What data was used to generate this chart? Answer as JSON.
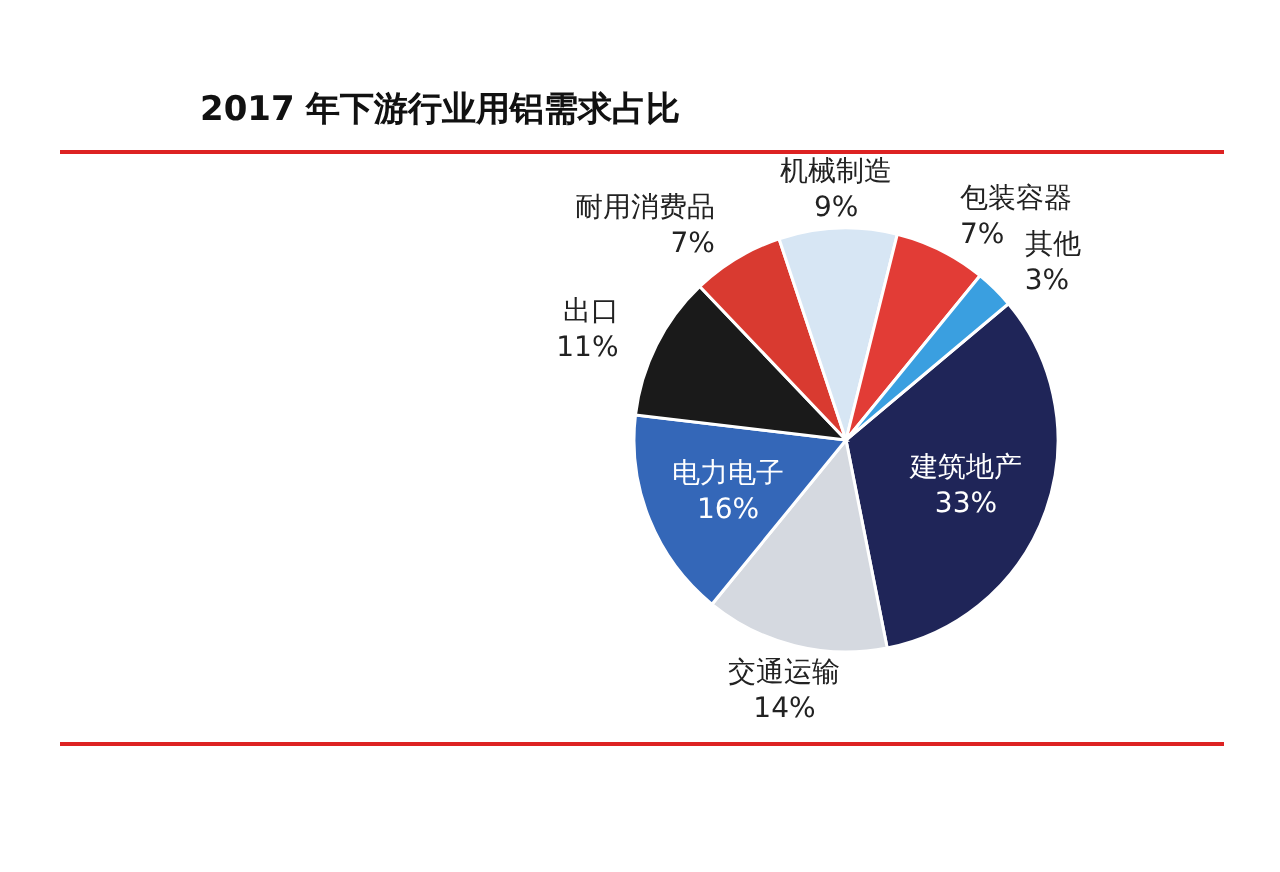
{
  "chart_data": {
    "type": "pie",
    "title": "2017 年下游行业用铝需求占比",
    "categories": [
      "建筑地产",
      "交通运输",
      "电力电子",
      "出口",
      "耐用消费品",
      "机械制造",
      "包装容器",
      "其他"
    ],
    "values": [
      33,
      14,
      16,
      11,
      7,
      9,
      7,
      3
    ],
    "value_labels": [
      "33%",
      "14%",
      "16%",
      "11%",
      "7%",
      "9%",
      "7%",
      "3%"
    ],
    "colors": [
      "#1f2558",
      "#d5d9e0",
      "#3467b8",
      "#1a1a1a",
      "#d93a30",
      "#d7e6f4",
      "#e23c36",
      "#3a9fe0"
    ]
  }
}
